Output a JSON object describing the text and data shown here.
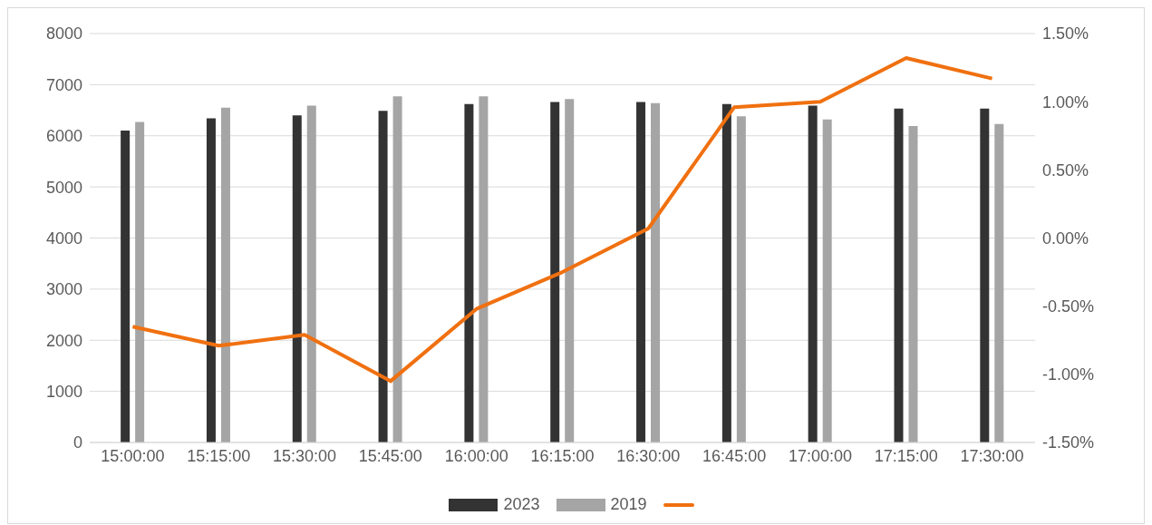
{
  "chart_data": {
    "type": "bar",
    "categories": [
      "15:00:00",
      "15:15:00",
      "15:30:00",
      "15:45:00",
      "16:00:00",
      "16:15:00",
      "16:30:00",
      "16:45:00",
      "17:00:00",
      "17:15:00",
      "17:30:00"
    ],
    "series": [
      {
        "name": "2023",
        "color": "#333333",
        "values": [
          6100,
          6340,
          6400,
          6490,
          6620,
          6660,
          6660,
          6620,
          6590,
          6530,
          6530
        ]
      },
      {
        "name": "2019",
        "color": "#a5a5a5",
        "values": [
          6270,
          6550,
          6590,
          6770,
          6770,
          6720,
          6640,
          6380,
          6320,
          6190,
          6230
        ]
      },
      {
        "type": "line",
        "axis": "y2",
        "color": "#f07010",
        "values": [
          -0.65,
          -0.79,
          -0.71,
          -1.05,
          -0.52,
          -0.25,
          0.07,
          0.96,
          1.0,
          1.32,
          1.17
        ]
      }
    ],
    "ylim": [
      0,
      8000
    ],
    "yticks": [
      0,
      1000,
      2000,
      3000,
      4000,
      5000,
      6000,
      7000,
      8000
    ],
    "y2lim": [
      -1.5,
      1.5
    ],
    "y2ticks": [
      {
        "value": -1.5,
        "label": "-1.50%"
      },
      {
        "value": -1,
        "label": "-1.00%"
      },
      {
        "value": -0.5,
        "label": "-0.50%"
      },
      {
        "value": 0,
        "label": "0.00%"
      },
      {
        "value": 0.5,
        "label": "0.50%"
      },
      {
        "value": 1,
        "label": "1.00%"
      },
      {
        "value": 1.5,
        "label": "1.50%"
      }
    ],
    "grid": "y",
    "legend": "bottom",
    "marker": "none",
    "line_style": "solid"
  }
}
